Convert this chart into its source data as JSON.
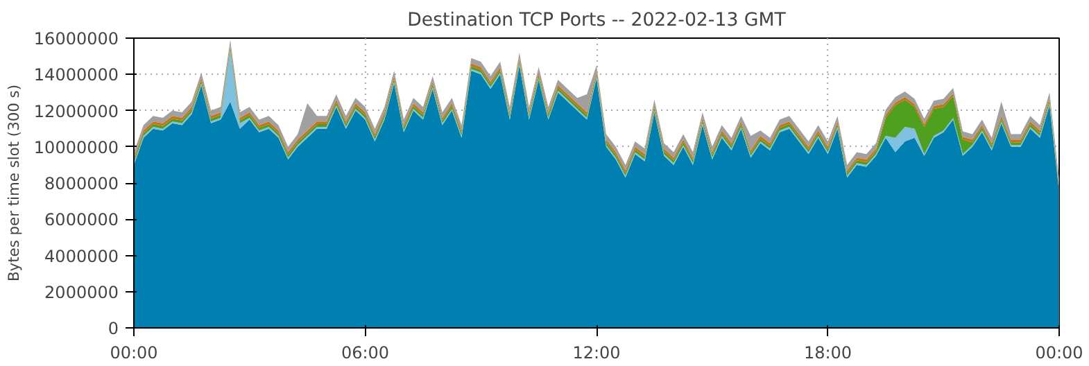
{
  "chart_data": {
    "type": "area",
    "stacked": true,
    "title": "Destination TCP Ports -- 2022-02-13 GMT",
    "ylabel": "Bytes per time slot (300 s)",
    "x": [
      0,
      0.25,
      0.5,
      0.75,
      1,
      1.25,
      1.5,
      1.75,
      2,
      2.25,
      2.5,
      2.75,
      3,
      3.25,
      3.5,
      3.75,
      4,
      4.25,
      4.5,
      4.75,
      5,
      5.25,
      5.5,
      5.75,
      6,
      6.25,
      6.5,
      6.75,
      7,
      7.25,
      7.5,
      7.75,
      8,
      8.25,
      8.5,
      8.75,
      9,
      9.25,
      9.5,
      9.75,
      10,
      10.25,
      10.5,
      10.75,
      11,
      11.25,
      11.5,
      11.75,
      12,
      12.25,
      12.5,
      12.75,
      13,
      13.25,
      13.5,
      13.75,
      14,
      14.25,
      14.5,
      14.75,
      15,
      15.25,
      15.5,
      15.75,
      16,
      16.25,
      16.5,
      16.75,
      17,
      17.25,
      17.5,
      17.75,
      18,
      18.25,
      18.5,
      18.75,
      19,
      19.25,
      19.5,
      19.75,
      20,
      20.25,
      20.5,
      20.75,
      21,
      21.25,
      21.5,
      21.75,
      22,
      22.25,
      22.5,
      22.75,
      23,
      23.25,
      23.5,
      23.75,
      24
    ],
    "series": [
      {
        "color": "#0080b0",
        "values": [
          9000000,
          10500000,
          11000000,
          10900000,
          11300000,
          11200000,
          11800000,
          13400000,
          11300000,
          11500000,
          12500000,
          11000000,
          11500000,
          10800000,
          11000000,
          10500000,
          9300000,
          10000000,
          10500000,
          11000000,
          11000000,
          12200000,
          11000000,
          12000000,
          11500000,
          10300000,
          11500000,
          13500000,
          10800000,
          12000000,
          11500000,
          13200000,
          11200000,
          12000000,
          10500000,
          14200000,
          14000000,
          13200000,
          14000000,
          11500000,
          14500000,
          11500000,
          13700000,
          11500000,
          13000000,
          12500000,
          12000000,
          11500000,
          13800000,
          10000000,
          9300000,
          8300000,
          9600000,
          9200000,
          11900000,
          9500000,
          9000000,
          10000000,
          9000000,
          11200000,
          9300000,
          10500000,
          9800000,
          11000000,
          9400000,
          10200000,
          9800000,
          10800000,
          11000000,
          10300000,
          9600000,
          10500000,
          9600000,
          11000000,
          8300000,
          9000000,
          8900000,
          9500000,
          10500000,
          9700000,
          10300000,
          10500000,
          9500000,
          10500000,
          10800000,
          11500000,
          9500000,
          10000000,
          10800000,
          9800000,
          11300000,
          10000000,
          10000000,
          11000000,
          10500000,
          12300000,
          7500000
        ]
      },
      {
        "color": "#80c0e0",
        "values": [
          100000,
          100000,
          100000,
          100000,
          100000,
          100000,
          100000,
          100000,
          100000,
          100000,
          2800000,
          300000,
          100000,
          100000,
          100000,
          100000,
          100000,
          100000,
          100000,
          100000,
          100000,
          100000,
          100000,
          100000,
          100000,
          100000,
          100000,
          100000,
          100000,
          100000,
          100000,
          100000,
          100000,
          100000,
          100000,
          100000,
          100000,
          100000,
          100000,
          100000,
          100000,
          100000,
          100000,
          100000,
          100000,
          100000,
          100000,
          100000,
          100000,
          100000,
          100000,
          100000,
          100000,
          100000,
          100000,
          100000,
          100000,
          100000,
          100000,
          100000,
          100000,
          100000,
          100000,
          100000,
          100000,
          100000,
          100000,
          100000,
          100000,
          100000,
          100000,
          100000,
          100000,
          100000,
          100000,
          100000,
          100000,
          100000,
          100000,
          800000,
          800000,
          500000,
          100000,
          100000,
          100000,
          100000,
          100000,
          100000,
          100000,
          100000,
          100000,
          100000,
          100000,
          100000,
          100000,
          100000,
          100000
        ]
      },
      {
        "color": "#50a020",
        "values": [
          150000,
          150000,
          150000,
          150000,
          150000,
          150000,
          150000,
          150000,
          150000,
          150000,
          150000,
          150000,
          150000,
          150000,
          150000,
          150000,
          150000,
          150000,
          150000,
          150000,
          150000,
          150000,
          150000,
          150000,
          150000,
          150000,
          150000,
          150000,
          150000,
          150000,
          150000,
          150000,
          150000,
          150000,
          150000,
          150000,
          150000,
          150000,
          150000,
          150000,
          150000,
          150000,
          150000,
          150000,
          150000,
          150000,
          150000,
          150000,
          150000,
          150000,
          150000,
          150000,
          150000,
          150000,
          150000,
          150000,
          150000,
          150000,
          150000,
          150000,
          150000,
          150000,
          150000,
          150000,
          150000,
          150000,
          150000,
          150000,
          150000,
          150000,
          150000,
          150000,
          150000,
          150000,
          150000,
          150000,
          150000,
          150000,
          1000000,
          1800000,
          1500000,
          1200000,
          1500000,
          1500000,
          1300000,
          1200000,
          800000,
          150000,
          150000,
          150000,
          150000,
          150000,
          150000,
          150000,
          150000,
          150000,
          150000
        ]
      },
      {
        "color": "#d07010",
        "values": [
          150000,
          150000,
          150000,
          150000,
          150000,
          150000,
          150000,
          150000,
          150000,
          150000,
          150000,
          150000,
          150000,
          150000,
          150000,
          150000,
          150000,
          150000,
          150000,
          150000,
          150000,
          150000,
          150000,
          150000,
          150000,
          150000,
          150000,
          150000,
          150000,
          150000,
          150000,
          150000,
          150000,
          150000,
          150000,
          150000,
          150000,
          150000,
          150000,
          150000,
          150000,
          150000,
          150000,
          150000,
          150000,
          150000,
          150000,
          150000,
          150000,
          150000,
          150000,
          150000,
          150000,
          150000,
          150000,
          150000,
          150000,
          150000,
          150000,
          150000,
          150000,
          150000,
          150000,
          150000,
          150000,
          150000,
          150000,
          150000,
          150000,
          150000,
          150000,
          150000,
          150000,
          150000,
          150000,
          150000,
          150000,
          150000,
          150000,
          150000,
          150000,
          150000,
          150000,
          150000,
          150000,
          150000,
          150000,
          150000,
          150000,
          150000,
          150000,
          150000,
          150000,
          150000,
          150000,
          150000,
          150000
        ]
      },
      {
        "color": "#a0a0a0",
        "values": [
          300000,
          300000,
          300000,
          300000,
          300000,
          300000,
          300000,
          300000,
          300000,
          300000,
          300000,
          300000,
          300000,
          300000,
          300000,
          300000,
          300000,
          300000,
          1500000,
          300000,
          300000,
          300000,
          300000,
          300000,
          300000,
          300000,
          300000,
          300000,
          300000,
          300000,
          300000,
          300000,
          300000,
          300000,
          300000,
          300000,
          300000,
          300000,
          300000,
          300000,
          300000,
          300000,
          300000,
          300000,
          300000,
          300000,
          300000,
          1000000,
          300000,
          300000,
          300000,
          300000,
          300000,
          300000,
          300000,
          300000,
          300000,
          300000,
          300000,
          300000,
          300000,
          300000,
          300000,
          300000,
          800000,
          300000,
          300000,
          300000,
          300000,
          300000,
          300000,
          300000,
          300000,
          300000,
          300000,
          300000,
          300000,
          300000,
          300000,
          300000,
          300000,
          300000,
          300000,
          300000,
          300000,
          300000,
          300000,
          300000,
          300000,
          300000,
          800000,
          300000,
          300000,
          300000,
          300000,
          300000,
          300000
        ]
      }
    ],
    "xlim": [
      0,
      24
    ],
    "xticks": [
      {
        "value": 0,
        "label": "00:00"
      },
      {
        "value": 6,
        "label": "06:00"
      },
      {
        "value": 12,
        "label": "12:00"
      },
      {
        "value": 18,
        "label": "18:00"
      },
      {
        "value": 24,
        "label": "00:00"
      }
    ],
    "ylim": [
      0,
      16000000
    ],
    "yticks": [
      0,
      2000000,
      4000000,
      6000000,
      8000000,
      10000000,
      12000000,
      14000000,
      16000000
    ],
    "grid": true
  }
}
